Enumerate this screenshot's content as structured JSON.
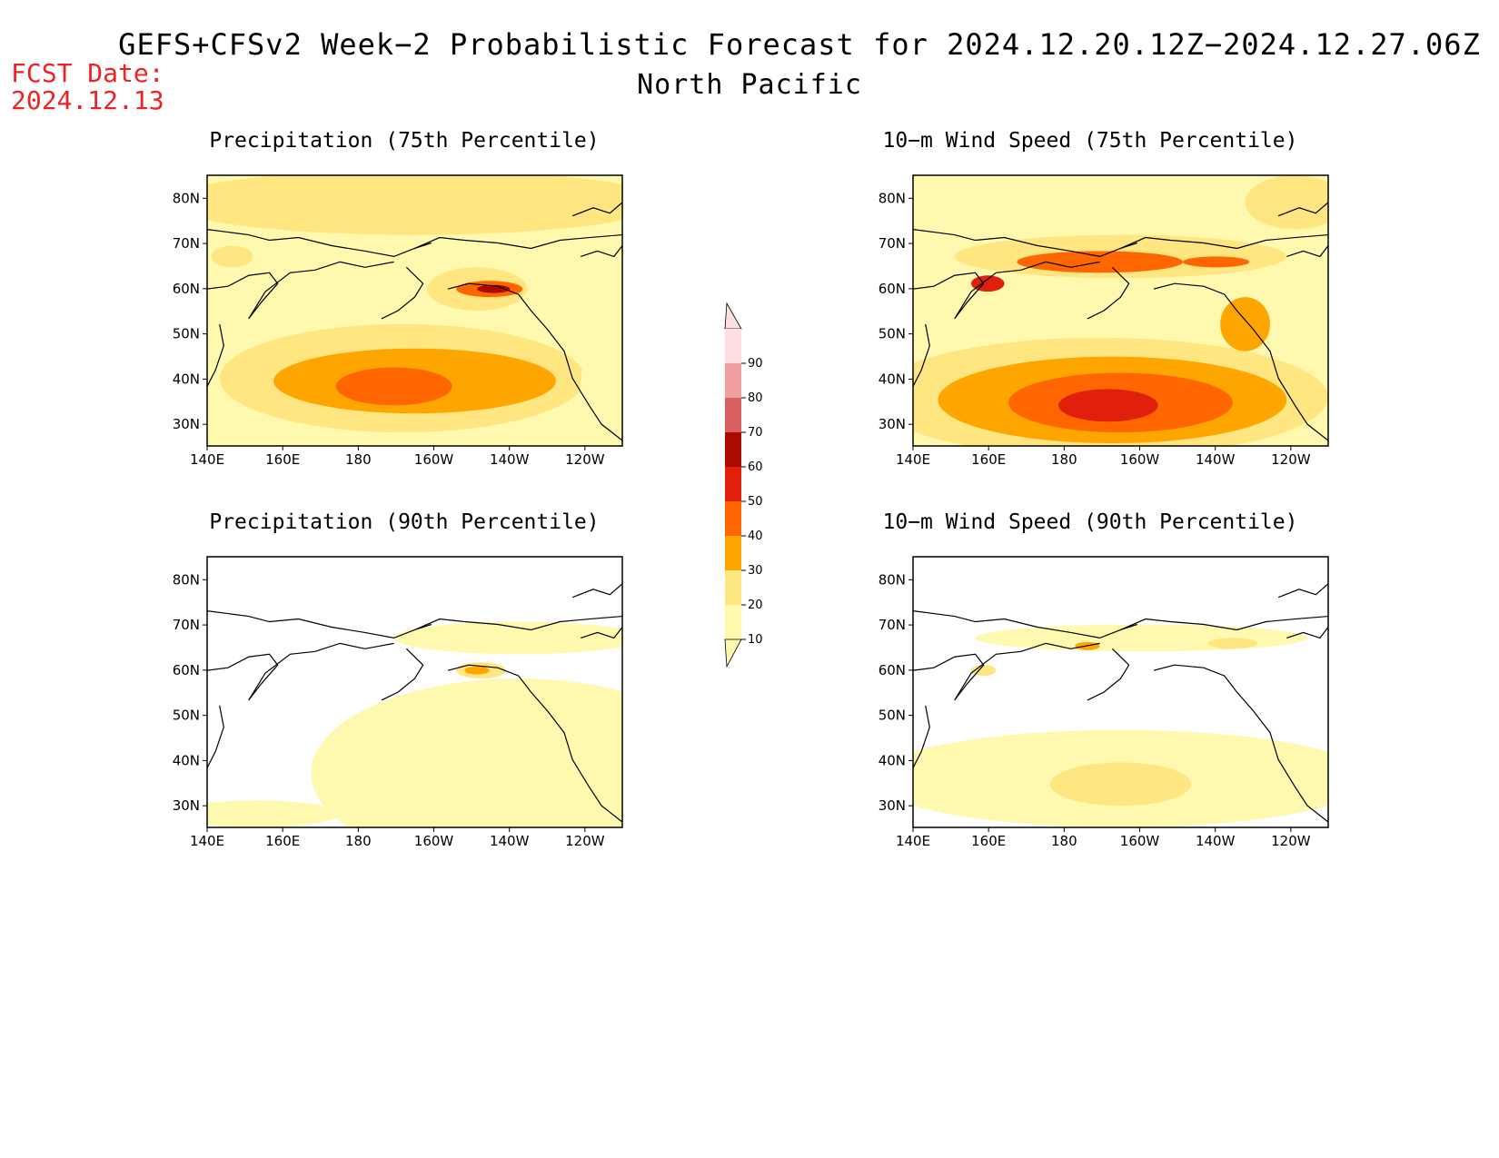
{
  "title": "GEFS+CFSv2 Week−2 Probabilistic Forecast for 2024.12.20.12Z−2024.12.27.06Z",
  "subtitle": "North Pacific",
  "fcst_date_label": "FCST Date:",
  "fcst_date": "2024.12.13",
  "panels": [
    {
      "title": "Precipitation (75th Percentile)"
    },
    {
      "title": "10−m Wind Speed (75th Percentile)"
    },
    {
      "title": "Precipitation (90th Percentile)"
    },
    {
      "title": "10−m Wind Speed (90th Percentile)"
    }
  ],
  "lat_labels": [
    "80N",
    "70N",
    "60N",
    "50N",
    "40N",
    "30N"
  ],
  "lon_labels": [
    "140E",
    "160E",
    "180",
    "160W",
    "140W",
    "120W"
  ],
  "colorbar": {
    "levels": [
      "10",
      "20",
      "30",
      "40",
      "50",
      "60",
      "70",
      "80",
      "90"
    ],
    "colors": [
      "#fff9b0",
      "#ffe680",
      "#ffa500",
      "#ff6600",
      "#e0200a",
      "#aa0a00",
      "#d96060",
      "#f0a0a0",
      "#ffe0e0"
    ]
  }
}
